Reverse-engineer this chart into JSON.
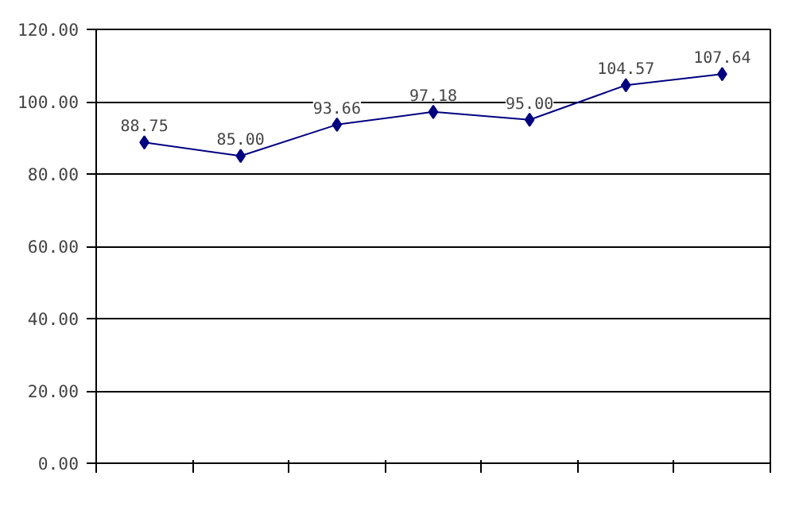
{
  "chart_data": {
    "type": "line",
    "categories": [
      null,
      null,
      null,
      null,
      null,
      null,
      null
    ],
    "series": [
      {
        "color": "#000080",
        "values": [
          88.75,
          85.0,
          93.66,
          97.18,
          95.0,
          104.57,
          107.64
        ]
      }
    ],
    "value_labels": [
      "88.75",
      "85.00",
      "93.66",
      "97.18",
      "95.00",
      "104.57",
      "107.64"
    ],
    "ylim": [
      0,
      120
    ],
    "yticks": [
      {
        "value": 0,
        "label": "0.00"
      },
      {
        "value": 20,
        "label": "20.00"
      },
      {
        "value": 40,
        "label": "40.00"
      },
      {
        "value": 60,
        "label": "60.00"
      },
      {
        "value": 80,
        "label": "80.00"
      },
      {
        "value": 100,
        "label": "100.00"
      },
      {
        "value": 120,
        "label": "120.00"
      }
    ],
    "grid": "y",
    "marker": "diamond",
    "line_style": "solid"
  }
}
